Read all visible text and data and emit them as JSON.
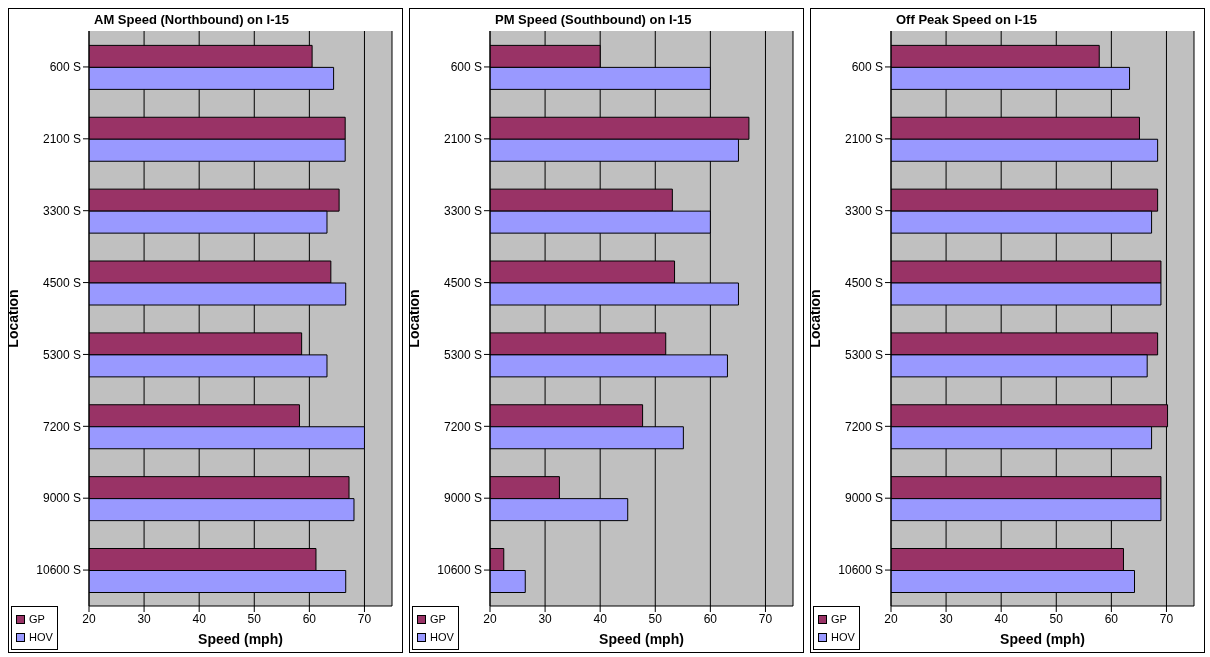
{
  "chart_data": [
    {
      "type": "bar",
      "orientation": "horizontal",
      "title": "AM Speed (Northbound) on I-15",
      "xlabel": "Speed (mph)",
      "ylabel": "Location",
      "categories": [
        "600 S",
        "2100 S",
        "3300 S",
        "4500 S",
        "5300 S",
        "7200 S",
        "9000 S",
        "10600 S"
      ],
      "series": [
        {
          "name": "GP",
          "color": "#993366",
          "values": [
            60.5,
            66.5,
            65.4,
            63.9,
            58.6,
            58.2,
            67.2,
            61.2
          ]
        },
        {
          "name": "HOV",
          "color": "#9999ff",
          "values": [
            64.4,
            66.5,
            63.2,
            66.6,
            63.2,
            70,
            68.1,
            66.6
          ]
        }
      ],
      "xlim": [
        20,
        75
      ],
      "xticks": [
        20,
        30,
        40,
        50,
        60,
        70
      ],
      "grid": "x",
      "legend": "bottom left"
    },
    {
      "type": "bar",
      "orientation": "horizontal",
      "title": "PM Speed (Southbound) on I-15",
      "xlabel": "Speed (mph)",
      "ylabel": "Location",
      "categories": [
        "600 S",
        "2100 S",
        "3300 S",
        "4500 S",
        "5300 S",
        "7200 S",
        "9000 S",
        "10600 S"
      ],
      "series": [
        {
          "name": "GP",
          "color": "#993366",
          "values": [
            40,
            67,
            53.1,
            53.5,
            51.9,
            47.7,
            32.6,
            22.5
          ]
        },
        {
          "name": "HOV",
          "color": "#9999ff",
          "values": [
            60,
            65.1,
            60,
            65.1,
            63.1,
            55.1,
            45,
            26.4
          ]
        }
      ],
      "xlim": [
        20,
        75
      ],
      "xticks": [
        20,
        30,
        40,
        50,
        60,
        70
      ],
      "grid": "x",
      "legend": "bottom left"
    },
    {
      "type": "bar",
      "orientation": "horizontal",
      "title": "Off Peak Speed on I-15",
      "xlabel": "Speed (mph)",
      "ylabel": "Location",
      "categories": [
        "600 S",
        "2100 S",
        "3300 S",
        "4500 S",
        "5300 S",
        "7200 S",
        "9000 S",
        "10600 S"
      ],
      "series": [
        {
          "name": "GP",
          "color": "#993366",
          "values": [
            57.8,
            65.1,
            68.4,
            69,
            68.4,
            70.2,
            69,
            62.2
          ]
        },
        {
          "name": "HOV",
          "color": "#9999ff",
          "values": [
            63.3,
            68.4,
            67.3,
            69,
            66.5,
            67.3,
            69,
            64.2
          ]
        }
      ],
      "xlim": [
        20,
        75
      ],
      "xticks": [
        20,
        30,
        40,
        50,
        60,
        70
      ],
      "grid": "x",
      "legend": "bottom left"
    }
  ]
}
